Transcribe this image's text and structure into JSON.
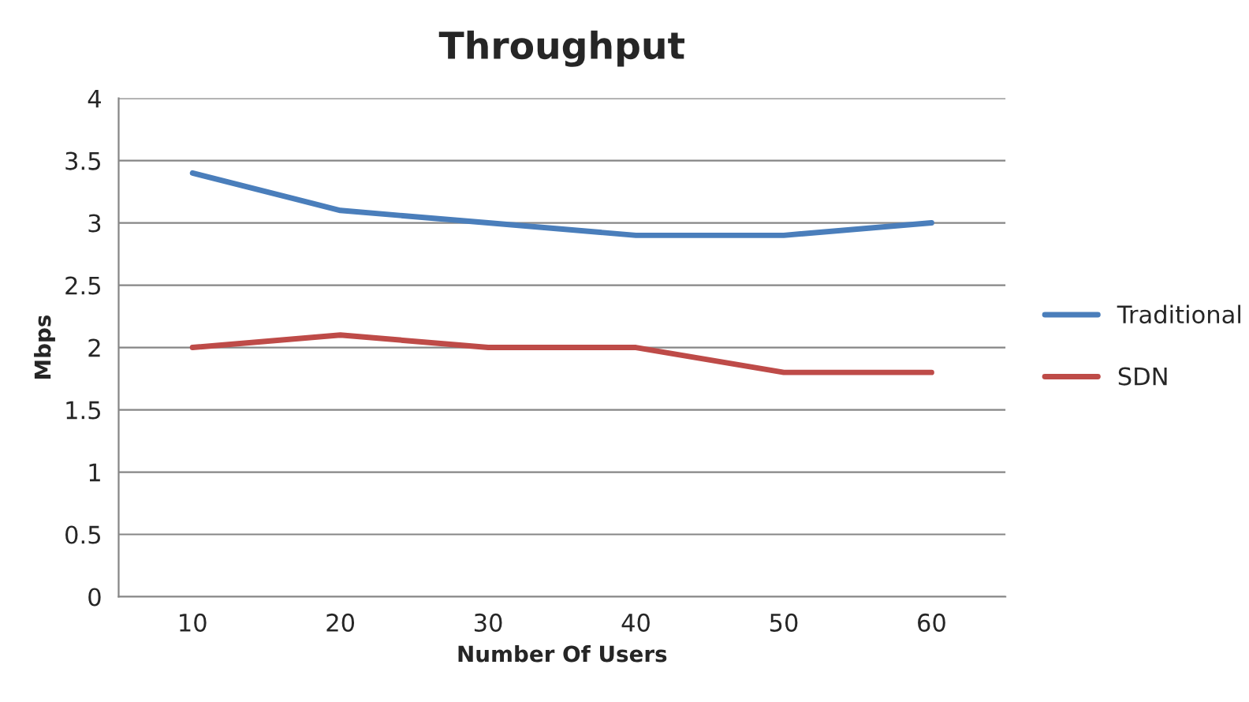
{
  "chart_data": {
    "type": "line",
    "title": "Throughput",
    "xlabel": "Number Of Users",
    "ylabel": "Mbps",
    "categories": [
      "10",
      "20",
      "30",
      "40",
      "50",
      "60"
    ],
    "series": [
      {
        "name": "Traditional",
        "color": "#4a7ebb",
        "values": [
          3.4,
          3.1,
          3.0,
          2.9,
          2.9,
          3.0
        ]
      },
      {
        "name": "SDN",
        "color": "#be4b48",
        "values": [
          2.0,
          2.1,
          2.0,
          2.0,
          1.8,
          1.8
        ]
      }
    ],
    "ylim": [
      0,
      4
    ],
    "yticks": [
      0,
      0.5,
      1,
      1.5,
      2,
      2.5,
      3,
      3.5,
      4
    ],
    "grid": "y",
    "legend": "right",
    "marker": "none",
    "line_style": "solid"
  }
}
